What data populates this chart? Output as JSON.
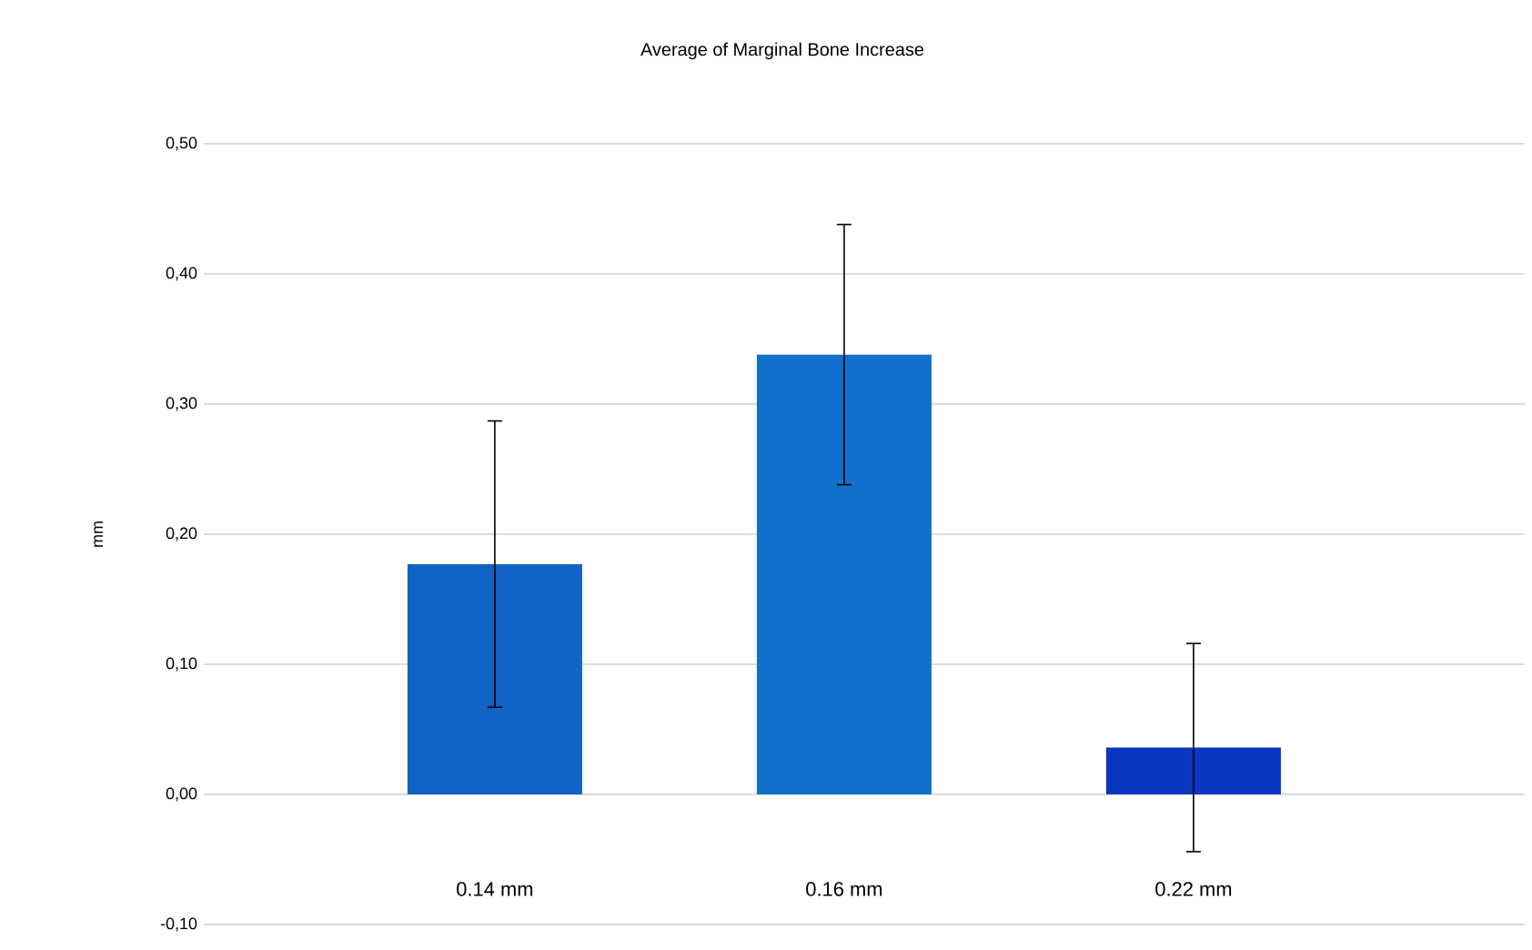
{
  "chart_data": {
    "type": "bar",
    "title": "Average of Marginal Bone Increase",
    "ylabel": "mm",
    "categories": [
      "0.14 mm",
      "0.16 mm",
      "0.22 mm"
    ],
    "values": [
      0.177,
      0.338,
      0.036
    ],
    "errors": [
      0.11,
      0.1,
      0.08
    ],
    "colors": [
      "#1263c6",
      "#1070cc",
      "#0a36c2"
    ],
    "ylim": [
      -0.1,
      0.5
    ],
    "yticks": [
      {
        "value": -0.1,
        "label": "-0,10"
      },
      {
        "value": 0,
        "label": "0,00"
      },
      {
        "value": 0.1,
        "label": "0,10"
      },
      {
        "value": 0.2,
        "label": "0,20"
      },
      {
        "value": 0.3,
        "label": "0,30"
      },
      {
        "value": 0.4,
        "label": "0,40"
      },
      {
        "value": 0.5,
        "label": "0,50"
      }
    ],
    "grid": "y"
  }
}
